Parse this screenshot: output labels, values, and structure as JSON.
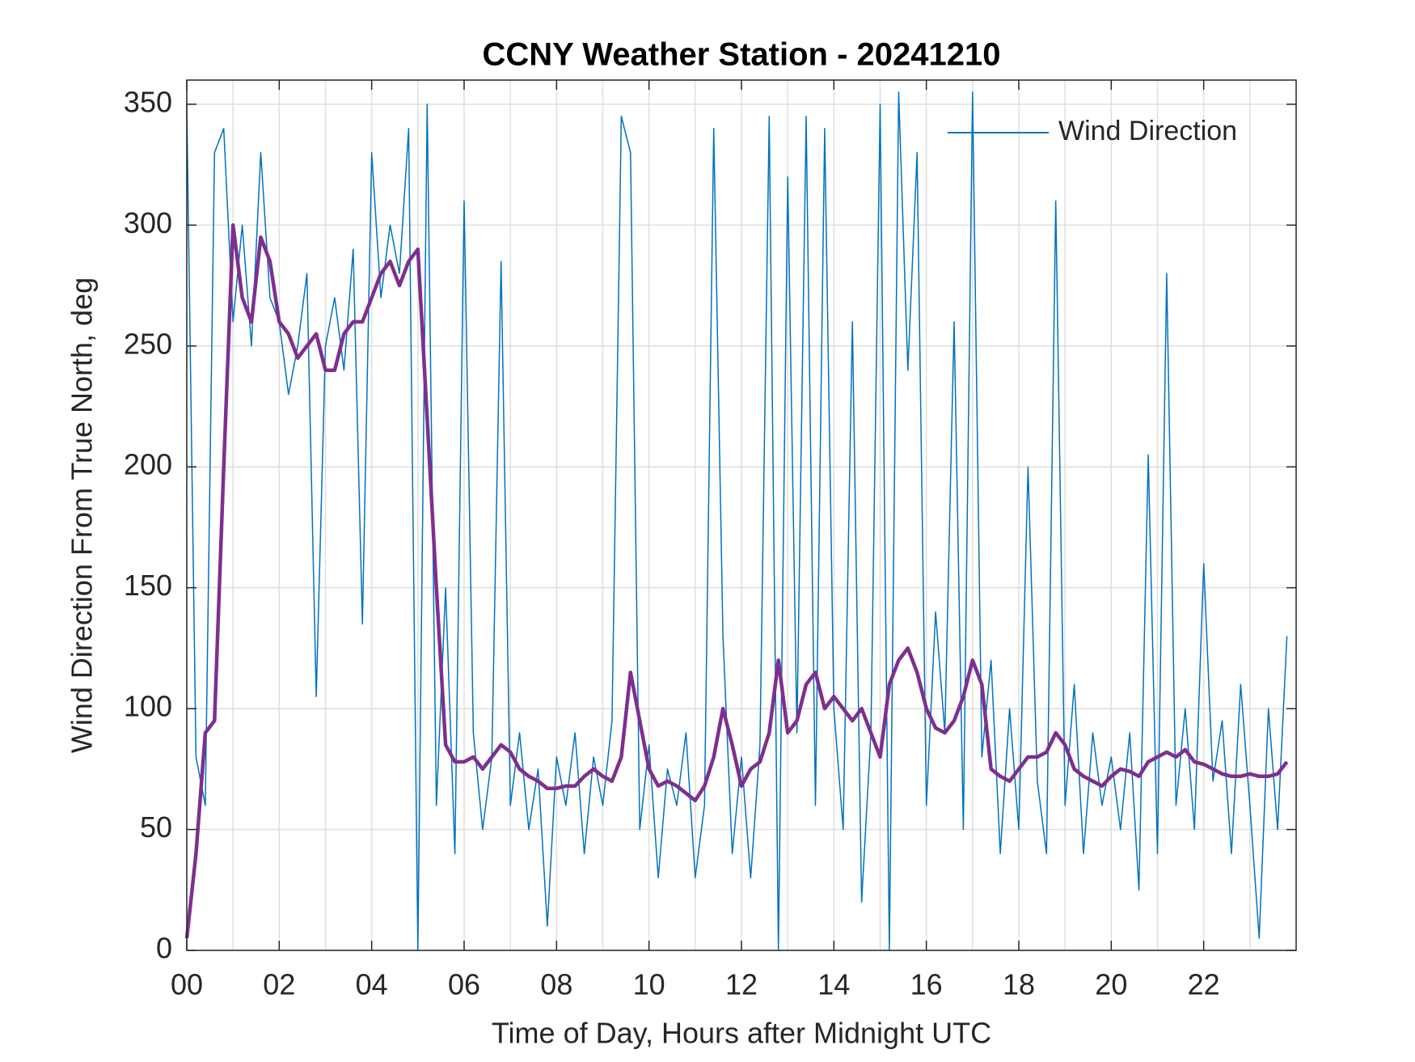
{
  "chart_data": {
    "type": "line",
    "title": "CCNY Weather Station - 20241210",
    "x_label": "Time of Day, Hours after Midnight UTC",
    "y_label": "Wind Direction From True North, deg",
    "xlim": [
      0,
      24
    ],
    "ylim": [
      0,
      360
    ],
    "xticks": [
      {
        "value": 0,
        "label": "00"
      },
      {
        "value": 2,
        "label": "02"
      },
      {
        "value": 4,
        "label": "04"
      },
      {
        "value": 6,
        "label": "06"
      },
      {
        "value": 8,
        "label": "08"
      },
      10,
      12,
      14,
      16,
      18,
      20,
      22
    ],
    "xminorticks": [
      1,
      3,
      5,
      7,
      9,
      11,
      13,
      15,
      17,
      19,
      21,
      23
    ],
    "yticks": [
      0,
      50,
      100,
      150,
      200,
      250,
      300,
      350
    ],
    "grid": true,
    "legend": "upper right",
    "x": [
      0,
      0.2,
      0.4,
      0.6,
      0.8,
      1,
      1.2,
      1.4,
      1.6,
      1.8,
      2,
      2.2,
      2.4,
      2.6,
      2.8,
      3,
      3.2,
      3.4,
      3.6,
      3.8,
      4,
      4.2,
      4.4,
      4.6,
      4.8,
      5,
      5.2,
      5.4,
      5.6,
      5.8,
      6,
      6.2,
      6.4,
      6.6,
      6.8,
      7,
      7.2,
      7.4,
      7.6,
      7.8,
      8,
      8.2,
      8.4,
      8.6,
      8.8,
      9,
      9.2,
      9.4,
      9.6,
      9.8,
      10,
      10.2,
      10.4,
      10.6,
      10.8,
      11,
      11.2,
      11.4,
      11.6,
      11.8,
      12,
      12.2,
      12.4,
      12.6,
      12.8,
      13,
      13.2,
      13.4,
      13.6,
      13.8,
      14,
      14.2,
      14.4,
      14.6,
      14.8,
      15,
      15.2,
      15.4,
      15.6,
      15.8,
      16,
      16.2,
      16.4,
      16.6,
      16.8,
      17,
      17.2,
      17.4,
      17.6,
      17.8,
      18,
      18.2,
      18.4,
      18.6,
      18.8,
      19,
      19.2,
      19.4,
      19.6,
      19.8,
      20,
      20.2,
      20.4,
      20.6,
      20.8,
      21,
      21.2,
      21.4,
      21.6,
      21.8,
      22,
      22.2,
      22.4,
      22.6,
      22.8,
      23,
      23.2,
      23.4,
      23.6,
      23.8
    ],
    "series": [
      {
        "name": "Wind Direction",
        "color": "#0072bd",
        "width": 1.5,
        "values": [
          350,
          80,
          60,
          330,
          340,
          260,
          300,
          250,
          330,
          270,
          260,
          230,
          250,
          280,
          105,
          250,
          270,
          240,
          290,
          135,
          330,
          270,
          300,
          280,
          340,
          0,
          350,
          60,
          150,
          40,
          310,
          90,
          50,
          80,
          285,
          60,
          90,
          50,
          75,
          10,
          80,
          60,
          90,
          40,
          80,
          60,
          95,
          345,
          330,
          50,
          85,
          30,
          75,
          60,
          90,
          30,
          60,
          340,
          130,
          40,
          80,
          30,
          85,
          345,
          0,
          320,
          90,
          345,
          60,
          340,
          100,
          50,
          260,
          20,
          90,
          350,
          0,
          355,
          240,
          330,
          60,
          140,
          90,
          260,
          50,
          355,
          80,
          120,
          40,
          100,
          50,
          200,
          70,
          40,
          310,
          60,
          110,
          40,
          90,
          60,
          80,
          50,
          90,
          25,
          205,
          40,
          280,
          60,
          100,
          50,
          160,
          70,
          95,
          40,
          110,
          60,
          5,
          100,
          50,
          130
        ]
      },
      {
        "color": "#7e2f8e",
        "width": 4.5,
        "values": [
          5,
          40,
          90,
          95,
          200,
          300,
          270,
          260,
          295,
          285,
          260,
          255,
          245,
          250,
          255,
          240,
          240,
          255,
          260,
          260,
          270,
          280,
          285,
          275,
          285,
          290,
          220,
          150,
          85,
          78,
          78,
          80,
          75,
          80,
          85,
          82,
          75,
          72,
          70,
          67,
          67,
          68,
          68,
          72,
          75,
          72,
          70,
          80,
          115,
          95,
          75,
          68,
          70,
          68,
          65,
          62,
          68,
          80,
          100,
          85,
          68,
          75,
          78,
          90,
          120,
          90,
          95,
          110,
          115,
          100,
          105,
          100,
          95,
          100,
          90,
          80,
          110,
          120,
          125,
          115,
          100,
          92,
          90,
          95,
          105,
          120,
          110,
          75,
          72,
          70,
          75,
          80,
          80,
          82,
          90,
          85,
          75,
          72,
          70,
          68,
          72,
          75,
          74,
          72,
          78,
          80,
          82,
          80,
          83,
          78,
          77,
          75,
          73,
          72,
          72,
          73,
          72,
          72,
          73,
          78
        ]
      }
    ]
  }
}
